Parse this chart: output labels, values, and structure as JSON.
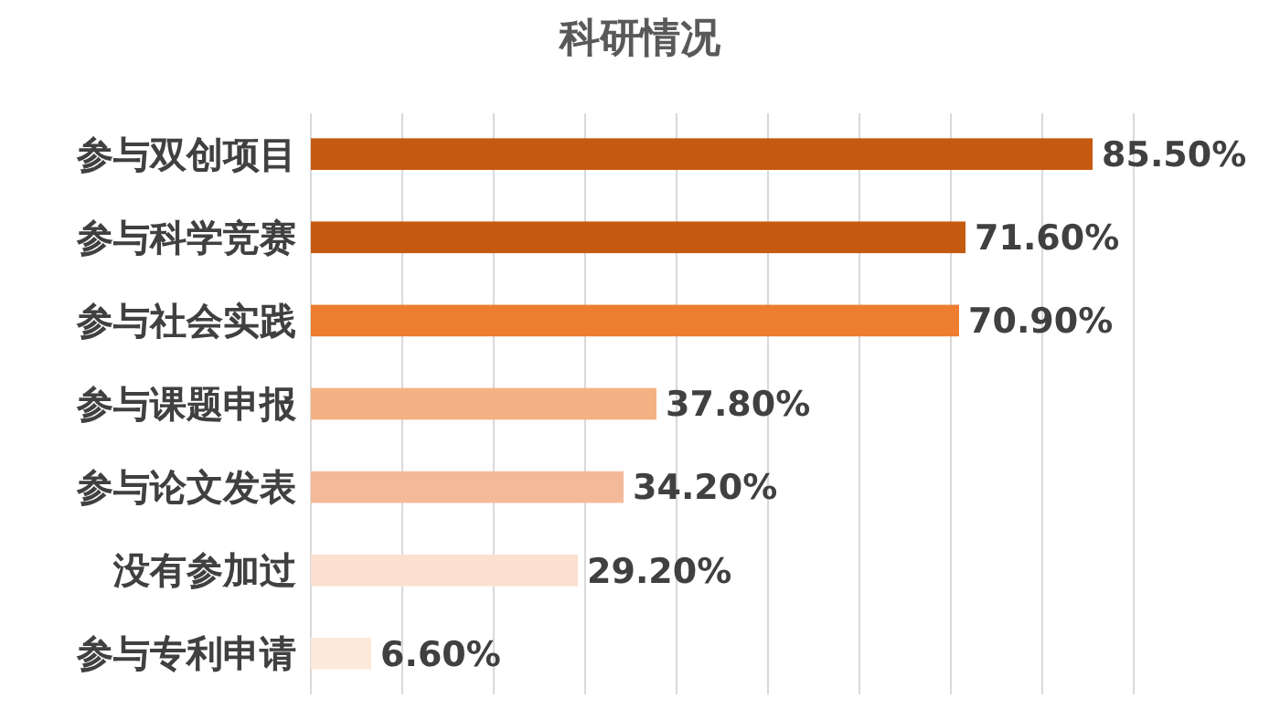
{
  "chart_data": {
    "type": "bar",
    "orientation": "horizontal",
    "title": "科研情况",
    "categories": [
      "参与双创项目",
      "参与科学竞赛",
      "参与社会实践",
      "参与课题申报",
      "参与论文发表",
      "没有参加过",
      "参与专利申请"
    ],
    "values": [
      85.5,
      71.6,
      70.9,
      37.8,
      34.2,
      29.2,
      6.6
    ],
    "colors": [
      "#c55a11",
      "#c55a11",
      "#ed7d31",
      "#f4b183",
      "#f4b999",
      "#fbe0cf",
      "#fde9d9"
    ],
    "value_labels": [
      "85.50%",
      "71.60%",
      "70.90%",
      "37.80%",
      "34.20%",
      "29.20%",
      "6.60%"
    ],
    "xlim": [
      0,
      90
    ],
    "xticks": [
      {
        "value": 0,
        "label": null
      },
      {
        "value": 10,
        "label": null
      },
      {
        "value": 20,
        "label": null
      },
      {
        "value": 30,
        "label": null
      },
      {
        "value": 40,
        "label": null
      },
      {
        "value": 50,
        "label": null
      },
      {
        "value": 60,
        "label": null
      },
      {
        "value": 70,
        "label": null
      },
      {
        "value": 80,
        "label": null
      },
      {
        "value": 90,
        "label": null
      }
    ],
    "grid": "x",
    "tick_labels": "y"
  }
}
